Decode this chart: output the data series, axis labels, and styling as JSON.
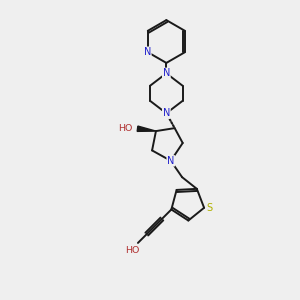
{
  "background_color": "#efefef",
  "bond_color": "#1a1a1a",
  "N_color": "#2020cc",
  "O_color": "#b03030",
  "S_color": "#b0b000",
  "figsize": [
    3.0,
    3.0
  ],
  "dpi": 100,
  "xlim": [
    0,
    10
  ],
  "ylim": [
    0,
    10
  ]
}
